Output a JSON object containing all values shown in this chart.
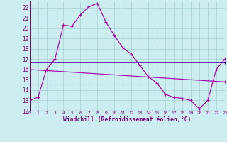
{
  "xlabel": "Windchill (Refroidissement éolien,°C)",
  "background_color": "#cceef0",
  "grid_color": "#aad4d8",
  "line_color": "#aa00aa",
  "line_color2": "#440088",
  "ylim": [
    12,
    22.6
  ],
  "xlim": [
    0,
    23
  ],
  "yticks": [
    12,
    13,
    14,
    15,
    16,
    17,
    18,
    19,
    20,
    21,
    22
  ],
  "xticks": [
    0,
    1,
    2,
    3,
    4,
    5,
    6,
    7,
    8,
    9,
    10,
    11,
    12,
    13,
    14,
    15,
    16,
    17,
    18,
    19,
    20,
    21,
    22,
    23
  ],
  "series1_x": [
    0,
    1,
    2,
    3,
    4,
    5,
    6,
    7,
    8,
    9,
    10,
    11,
    12,
    13,
    14,
    15,
    16,
    17,
    18,
    19,
    20,
    21,
    22,
    23
  ],
  "series1_y": [
    13.0,
    13.3,
    16.0,
    17.0,
    20.3,
    20.2,
    21.3,
    22.1,
    22.4,
    20.6,
    19.3,
    18.1,
    17.5,
    16.4,
    15.3,
    14.7,
    13.6,
    13.3,
    13.2,
    13.0,
    12.2,
    13.0,
    16.0,
    17.0
  ],
  "series2_x": [
    0,
    23
  ],
  "series2_y": [
    16.7,
    16.7
  ],
  "series3_x": [
    0,
    23
  ],
  "series3_y": [
    16.0,
    14.8
  ]
}
